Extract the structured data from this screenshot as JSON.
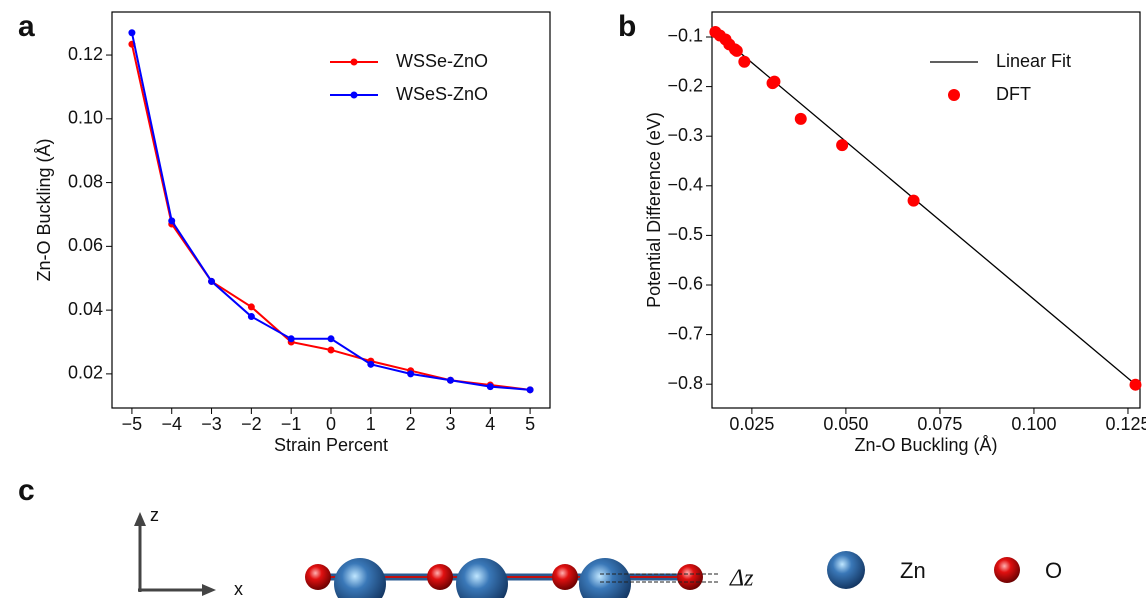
{
  "chart_data": [
    {
      "type": "line",
      "panel_label": "a",
      "xlabel": "Strain Percent",
      "ylabel": "Zn-O Buckling (Å)",
      "x": [
        -5,
        -4,
        -3,
        -2,
        -1,
        0,
        1,
        2,
        3,
        4,
        5
      ],
      "series": [
        {
          "name": "WSSe-ZnO",
          "color": "#ff0000",
          "values": [
            0.1234,
            0.067,
            0.049,
            0.041,
            0.03,
            0.0275,
            0.024,
            0.021,
            0.018,
            0.0165,
            0.015
          ]
        },
        {
          "name": "WSeS-ZnO",
          "color": "#0000ff",
          "values": [
            0.127,
            0.068,
            0.049,
            0.038,
            0.031,
            0.031,
            0.023,
            0.02,
            0.018,
            0.016,
            0.015
          ]
        }
      ],
      "xlim": [
        -5.5,
        5.5
      ],
      "ylim": [
        0.0093,
        0.1335
      ],
      "xticks": [
        {
          "value": -5,
          "label": "−5"
        },
        {
          "value": -4,
          "label": "−4"
        },
        {
          "value": -3,
          "label": "−3"
        },
        {
          "value": -2,
          "label": "−2"
        },
        {
          "value": -1,
          "label": "−1"
        },
        0,
        1,
        2,
        3,
        4,
        5
      ],
      "yticks": [
        0.02,
        0.04,
        0.06,
        0.08,
        {
          "value": 0.1,
          "label": "0.10"
        },
        0.12
      ],
      "grid": false,
      "legend": "upper right"
    },
    {
      "type": "scatter",
      "panel_label": "b",
      "xlabel": "Zn-O Buckling (Å)",
      "ylabel": "Potential Difference (eV)",
      "series": [
        {
          "name": "Linear Fit",
          "mode": "line",
          "color": "#000000",
          "x": [
            0.0145,
            0.128
          ],
          "values": [
            -0.085,
            -0.807
          ]
        },
        {
          "name": "DFT",
          "mode": "marker",
          "color": "#ff0000",
          "x": [
            0.0153,
            0.0165,
            0.018,
            0.019,
            0.0205,
            0.021,
            0.023,
            0.031,
            0.0305,
            0.038,
            0.049,
            0.068,
            0.127
          ],
          "values": [
            -0.09,
            -0.097,
            -0.105,
            -0.115,
            -0.125,
            -0.128,
            -0.15,
            -0.19,
            -0.193,
            -0.265,
            -0.318,
            -0.43,
            -0.801
          ]
        }
      ],
      "xlim": [
        0.0144,
        0.1282
      ],
      "ylim": [
        -0.848,
        -0.0496
      ],
      "xticks": [
        0.025,
        {
          "value": 0.05,
          "label": "0.050"
        },
        0.075,
        {
          "value": 0.1,
          "label": "0.100"
        },
        0.125
      ],
      "yticks": [
        {
          "value": -0.1,
          "label": "−0.1"
        },
        {
          "value": -0.2,
          "label": "−0.2"
        },
        {
          "value": -0.3,
          "label": "−0.3"
        },
        {
          "value": -0.4,
          "label": "−0.4"
        },
        {
          "value": -0.5,
          "label": "−0.5"
        },
        {
          "value": -0.6,
          "label": "−0.6"
        },
        {
          "value": -0.7,
          "label": "−0.7"
        },
        {
          "value": -0.8,
          "label": "−0.8"
        }
      ],
      "grid": false,
      "legend": "upper right"
    }
  ],
  "diagram": {
    "panel_label": "c",
    "axis_labels": [
      "z",
      "x"
    ],
    "delta_label": "Δz",
    "legend": [
      "Zn",
      "O"
    ]
  }
}
